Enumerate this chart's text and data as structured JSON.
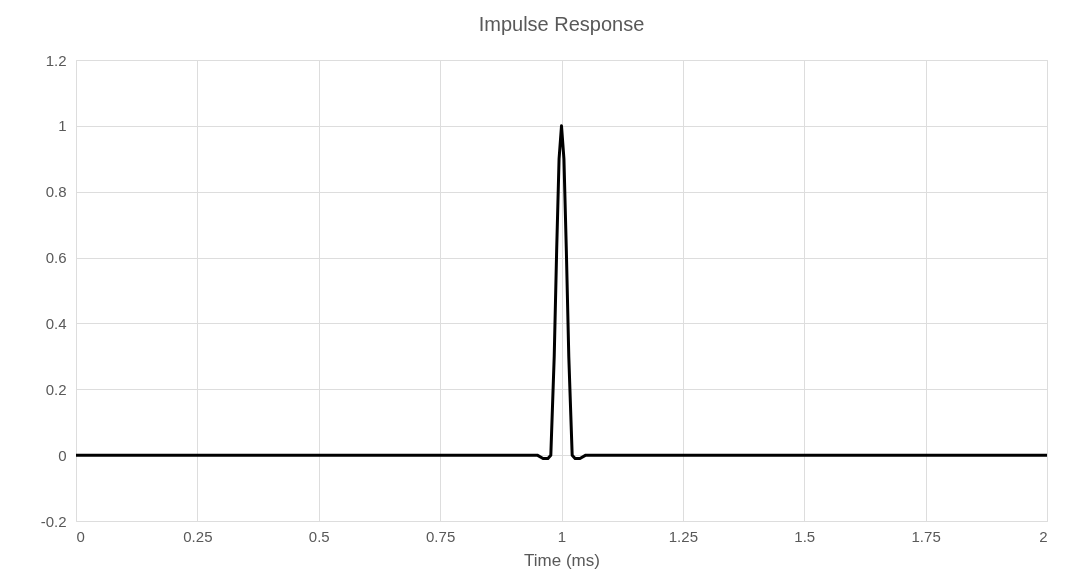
{
  "chart_data": {
    "type": "line",
    "title": "Impulse Response",
    "xlabel": "Time (ms)",
    "x": [
      0,
      0.5,
      0.95,
      0.962,
      0.972,
      0.978,
      0.985,
      0.99,
      0.995,
      1,
      1.005,
      1.01,
      1.015,
      1.022,
      1.028,
      1.038,
      1.05,
      1.5,
      2
    ],
    "series": [
      {
        "color": "#000000",
        "values": [
          0,
          0,
          0,
          -0.01,
          -0.01,
          0,
          0.3,
          0.62,
          0.9,
          1,
          0.9,
          0.62,
          0.3,
          0,
          -0.01,
          -0.01,
          0,
          0,
          0
        ]
      }
    ],
    "xlim": [
      0,
      2
    ],
    "xticks": [
      0,
      0.25,
      0.5,
      0.75,
      1,
      1.25,
      1.5,
      1.75,
      2
    ],
    "ylim": [
      -0.2,
      1.2
    ],
    "yticks": [
      -0.2,
      0,
      0.2,
      0.4,
      0.6,
      0.8,
      1,
      1.2
    ],
    "grid": true,
    "marker": "none",
    "line_style": "solid"
  }
}
